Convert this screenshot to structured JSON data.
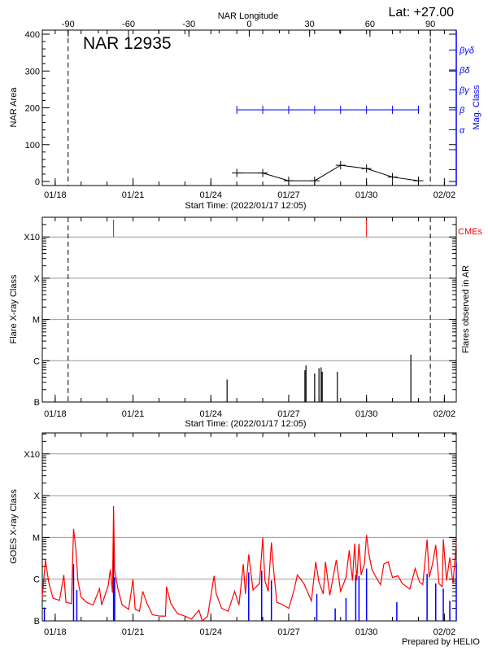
{
  "header": {
    "top_axis_title": "NAR Longitude",
    "latitude": "Lat: +27.00"
  },
  "footer": {
    "credit": "Prepared by HELIO"
  },
  "colors": {
    "axis": "#000000",
    "grid": "#999999",
    "mag_class": "#0000ff",
    "goes_long": "#ff0000",
    "goes_short": "#0000ff",
    "cme": "#ff0000",
    "flare": "#000000"
  },
  "chart_data": [
    {
      "type": "line",
      "title": "NAR 12935",
      "xlabel": "Start Time: (2022/01/17 12:05)",
      "ylabel": "NAR Area",
      "y2label": "Mag. Class",
      "x2label": "NAR Longitude",
      "xlim": [
        "2022-01-17T12:05",
        "2022-02-02T11:00"
      ],
      "ylim": [
        0,
        400
      ],
      "y2lim": [
        0.2,
        8.0
      ],
      "xtick_labels": [
        "01/18",
        "01/21",
        "01/24",
        "01/27",
        "01/30",
        "02/02"
      ],
      "xtick_dates": [
        "2022-01-18T00:00",
        "2022-01-21T00:00",
        "2022-01-24T00:00",
        "2022-01-27T00:00",
        "2022-01-30T00:00",
        "2022-02-02T00:00"
      ],
      "ytick_labels": [
        "0",
        "100",
        "200",
        "300",
        "400"
      ],
      "x2ticks": [
        -90,
        -60,
        -30,
        0,
        30,
        60,
        90
      ],
      "x2tick_labels": [
        "-90",
        "-60",
        "-30",
        "0",
        "30",
        "60",
        "90"
      ],
      "limb_lines": [
        {
          "date": "2022-01-18T12:00",
          "longitude": -90
        },
        {
          "date": "2022-02-01T11:00",
          "longitude": 90
        }
      ],
      "y2ticks": [
        {
          "level": 1,
          "label": ""
        },
        {
          "level": 2,
          "label": ""
        },
        {
          "level": 3,
          "label": "α"
        },
        {
          "level": 4,
          "label": "β"
        },
        {
          "level": 5,
          "label": "βγ"
        },
        {
          "level": 6,
          "label": "βδ"
        },
        {
          "level": 7,
          "label": "βγδ"
        }
      ],
      "series": [
        {
          "name": "NAR Area",
          "x": [
            "2022-01-25T00:00",
            "2022-01-26T00:00",
            "2022-01-27T00:00",
            "2022-01-28T00:00",
            "2022-01-29T00:00",
            "2022-01-30T00:00",
            "2022-01-31T00:00",
            "2022-02-01T00:00"
          ],
          "values": [
            23,
            23,
            2,
            2,
            44,
            35,
            12,
            2
          ]
        },
        {
          "name": "Mag. Class",
          "x": [
            "2022-01-25T00:00",
            "2022-01-26T00:00",
            "2022-01-27T00:00",
            "2022-01-28T00:00",
            "2022-01-29T00:00",
            "2022-01-30T00:00",
            "2022-01-31T00:00",
            "2022-02-01T00:00"
          ],
          "values": [
            "β",
            "β",
            "β",
            "β",
            "β",
            "β",
            "β",
            "β"
          ]
        }
      ]
    },
    {
      "type": "bar",
      "xlabel": "Start Time: (2022/01/17 12:05)",
      "ylabel": "Flare X-ray Class",
      "y2label": "Flares observed in AR",
      "cme_label": "CMEs",
      "yscale": "log",
      "ylim_flux": [
        1e-07,
        0.0028
      ],
      "grid": true,
      "ytick_labels": [
        "B",
        "C",
        "M",
        "X",
        "X10"
      ],
      "ytick_flux": [
        1e-07,
        1e-06,
        1e-05,
        0.0001,
        0.001
      ],
      "flares": [
        {
          "time": "2022-01-24T15:00",
          "class": "B3.5"
        },
        {
          "time": "2022-01-27T15:00",
          "class": "B5.9"
        },
        {
          "time": "2022-01-27T16:00",
          "class": "B7.7"
        },
        {
          "time": "2022-01-28T00:00",
          "class": "B4.9"
        },
        {
          "time": "2022-01-28T04:00",
          "class": "B6.6"
        },
        {
          "time": "2022-01-28T06:00",
          "class": "B6.9"
        },
        {
          "time": "2022-01-28T07:00",
          "class": "B5.4"
        },
        {
          "time": "2022-01-28T21:00",
          "class": "B5.4"
        },
        {
          "time": "2022-01-31T17:00",
          "class": "C1.4"
        }
      ],
      "cmes": [
        "2022-01-20T06:00",
        "2022-01-30T00:00"
      ]
    },
    {
      "type": "line",
      "ylabel": "GOES X-ray Class",
      "yscale": "log",
      "ylim_flux": [
        1e-07,
        0.0032
      ],
      "grid": true,
      "ytick_labels": [
        "B",
        "C",
        "M",
        "X",
        "X10"
      ],
      "ytick_flux": [
        1e-07,
        1e-06,
        1e-05,
        0.0001,
        0.001
      ],
      "series": [
        {
          "name": "long",
          "points": [
            [
              "2022-01-17T12:05",
              3.8e-07
            ],
            [
              "2022-01-17T15:00",
              2.9e-06
            ],
            [
              "2022-01-17T18:00",
              8.5e-07
            ],
            [
              "2022-01-17T22:00",
              3.5e-07
            ],
            [
              "2022-01-18T04:00",
              3.1e-07
            ],
            [
              "2022-01-18T08:00",
              1.26e-06
            ],
            [
              "2022-01-18T10:00",
              2.8e-07
            ],
            [
              "2022-01-18T15:00",
              2.6e-07
            ],
            [
              "2022-01-18T17:00",
              1.6e-05
            ],
            [
              "2022-01-18T19:00",
              5.6e-06
            ],
            [
              "2022-01-18T21:00",
              9.3e-07
            ],
            [
              "2022-01-19T00:00",
              3.7e-07
            ],
            [
              "2022-01-19T05:00",
              2.8e-07
            ],
            [
              "2022-01-19T11:00",
              2.4e-07
            ],
            [
              "2022-01-19T17:00",
              5.9e-07
            ],
            [
              "2022-01-19T19:00",
              2.4e-07
            ],
            [
              "2022-01-20T01:00",
              6.9e-07
            ],
            [
              "2022-01-20T03:00",
              1.7e-06
            ],
            [
              "2022-01-20T05:00",
              4.7e-07
            ],
            [
              "2022-01-20T06:00",
              5.6e-05
            ],
            [
              "2022-01-20T07:00",
              1.7e-06
            ],
            [
              "2022-01-20T10:00",
              5.9e-07
            ],
            [
              "2022-01-20T14:00",
              2.4e-07
            ],
            [
              "2022-01-20T20:00",
              1.9e-07
            ],
            [
              "2022-01-21T00:00",
              1e-06
            ],
            [
              "2022-01-21T02:00",
              1.9e-07
            ],
            [
              "2022-01-21T06:00",
              1.7e-07
            ],
            [
              "2022-01-21T09:00",
              5.1e-07
            ],
            [
              "2022-01-21T13:00",
              2.6e-07
            ],
            [
              "2022-01-21T18:00",
              1.4e-07
            ],
            [
              "2022-01-22T01:00",
              1.3e-07
            ],
            [
              "2022-01-22T06:00",
              1.3e-07
            ],
            [
              "2022-01-22T07:00",
              6.6e-07
            ],
            [
              "2022-01-22T11:00",
              2.6e-07
            ],
            [
              "2022-01-22T17:00",
              1.5e-07
            ],
            [
              "2022-01-23T00:00",
              1.3e-07
            ],
            [
              "2022-01-23T06:00",
              1.1e-07
            ],
            [
              "2022-01-23T13:00",
              1.8e-07
            ],
            [
              "2022-01-23T16:00",
              1e-07
            ],
            [
              "2022-01-23T21:00",
              1.3e-07
            ],
            [
              "2022-01-24T03:00",
              1.2e-06
            ],
            [
              "2022-01-24T05:00",
              4.4e-07
            ],
            [
              "2022-01-24T10:00",
              2e-07
            ],
            [
              "2022-01-24T16:00",
              1.7e-07
            ],
            [
              "2022-01-24T22:00",
              5.1e-07
            ],
            [
              "2022-01-25T02:00",
              2.4e-07
            ],
            [
              "2022-01-25T06:00",
              2.3e-06
            ],
            [
              "2022-01-25T08:00",
              4.4e-07
            ],
            [
              "2022-01-25T11:00",
              3.9e-06
            ],
            [
              "2022-01-25T15:00",
              5.5e-07
            ],
            [
              "2022-01-25T21:00",
              7.9e-07
            ],
            [
              "2022-01-26T00:00",
              9.8e-06
            ],
            [
              "2022-01-26T02:00",
              9.3e-07
            ],
            [
              "2022-01-26T05:00",
              5.1e-07
            ],
            [
              "2022-01-26T08:00",
              7.6e-06
            ],
            [
              "2022-01-26T10:00",
              1.7e-06
            ],
            [
              "2022-01-26T13:00",
              2.8e-07
            ],
            [
              "2022-01-26T19:00",
              2.4e-07
            ],
            [
              "2022-01-27T00:00",
              2e-07
            ],
            [
              "2022-01-27T05:00",
              5.5e-07
            ],
            [
              "2022-01-27T08:00",
              1.26e-06
            ],
            [
              "2022-01-27T14:00",
              7.9e-07
            ],
            [
              "2022-01-27T21:00",
              3e-07
            ],
            [
              "2022-01-28T01:00",
              2.6e-06
            ],
            [
              "2022-01-28T04:00",
              8.5e-07
            ],
            [
              "2022-01-28T08:00",
              4.4e-07
            ],
            [
              "2022-01-28T10:00",
              2.6e-06
            ],
            [
              "2022-01-28T14:00",
              4.1e-07
            ],
            [
              "2022-01-28T20:00",
              2.9e-06
            ],
            [
              "2022-01-29T00:00",
              5.1e-07
            ],
            [
              "2022-01-29T05:00",
              1.1e-06
            ],
            [
              "2022-01-29T08:00",
              4.9e-06
            ],
            [
              "2022-01-29T11:00",
              9.3e-07
            ],
            [
              "2022-01-29T13:00",
              7.1e-06
            ],
            [
              "2022-01-29T15:00",
              9.3e-07
            ],
            [
              "2022-01-29T17:00",
              7.1e-06
            ],
            [
              "2022-01-29T19:00",
              1.26e-06
            ],
            [
              "2022-01-29T22:00",
              2.3e-06
            ],
            [
              "2022-01-30T00:00",
              1.15e-05
            ],
            [
              "2022-01-30T02:00",
              4.2e-06
            ],
            [
              "2022-01-30T05:00",
              1.7e-06
            ],
            [
              "2022-01-30T08:00",
              1.2e-06
            ],
            [
              "2022-01-30T13:00",
              7.4e-07
            ],
            [
              "2022-01-30T16:00",
              2.3e-06
            ],
            [
              "2022-01-30T20:00",
              2.6e-06
            ],
            [
              "2022-01-31T00:00",
              1.1e-06
            ],
            [
              "2022-01-31T05:00",
              1.2e-06
            ],
            [
              "2022-01-31T09:00",
              7.9e-07
            ],
            [
              "2022-01-31T16:00",
              5.8e-07
            ],
            [
              "2022-01-31T21:00",
              1.8e-06
            ],
            [
              "2022-02-01T01:00",
              8.5e-07
            ],
            [
              "2022-02-01T04:00",
              7.4e-07
            ],
            [
              "2022-02-01T08:00",
              8.9e-06
            ],
            [
              "2022-02-01T10:00",
              1.1e-06
            ],
            [
              "2022-02-01T13:00",
              2.3e-06
            ],
            [
              "2022-02-01T16:00",
              6.6e-06
            ],
            [
              "2022-02-01T19:00",
              7.8e-07
            ],
            [
              "2022-02-01T22:00",
              6.6e-07
            ],
            [
              "2022-02-01T23:00",
              9.1e-06
            ],
            [
              "2022-02-02T02:00",
              9.3e-07
            ],
            [
              "2022-02-02T05:00",
              3.3e-06
            ],
            [
              "2022-02-02T08:00",
              7.8e-07
            ],
            [
              "2022-02-02T11:00",
              7.6e-06
            ]
          ]
        },
        {
          "name": "short",
          "points": [
            [
              "2022-01-17T14:00",
              2.1e-07
            ],
            [
              "2022-01-18T17:00",
              2.3e-06
            ],
            [
              "2022-01-18T20:00",
              5.5e-07
            ],
            [
              "2022-01-20T06:00",
              1.2e-05
            ],
            [
              "2022-01-20T07:00",
              1.1e-06
            ],
            [
              "2022-01-25T11:00",
              1.45e-06
            ],
            [
              "2022-01-25T23:00",
              1.6e-06
            ],
            [
              "2022-01-26T08:00",
              9.3e-07
            ],
            [
              "2022-01-28T02:00",
              4.4e-07
            ],
            [
              "2022-01-28T19:00",
              2e-07
            ],
            [
              "2022-01-29T05:00",
              3.5e-07
            ],
            [
              "2022-01-29T14:00",
              1.26e-06
            ],
            [
              "2022-01-29T17:00",
              1.2e-06
            ],
            [
              "2022-01-30T00:00",
              1.8e-06
            ],
            [
              "2022-01-31T04:00",
              2.8e-07
            ],
            [
              "2022-02-01T08:00",
              1.35e-06
            ],
            [
              "2022-02-01T16:00",
              7.9e-07
            ],
            [
              "2022-02-01T23:00",
              5.9e-07
            ],
            [
              "2022-02-02T05:00",
              3e-07
            ],
            [
              "2022-02-02T11:00",
              2.5e-06
            ]
          ]
        }
      ]
    }
  ]
}
